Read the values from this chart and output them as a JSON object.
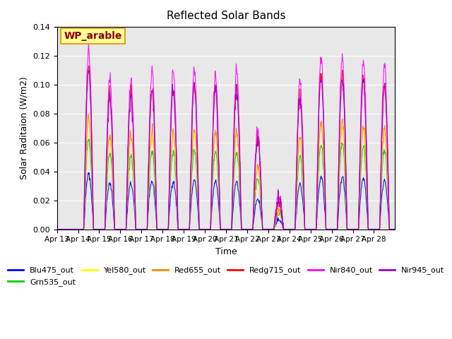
{
  "title": "Reflected Solar Bands",
  "xlabel": "Time",
  "ylabel": "Solar Raditaion (W/m2)",
  "ylim": [
    0,
    0.14
  ],
  "yticks": [
    0.0,
    0.02,
    0.04,
    0.06,
    0.08,
    0.1,
    0.12,
    0.14
  ],
  "xtick_labels": [
    "Apr 13",
    "Apr 14",
    "Apr 15",
    "Apr 16",
    "Apr 17",
    "Apr 18",
    "Apr 19",
    "Apr 20",
    "Apr 21",
    "Apr 22",
    "Apr 23",
    "Apr 24",
    "Apr 25",
    "Apr 26",
    "Apr 27",
    "Apr 28"
  ],
  "annotation_text": "WP_arable",
  "annotation_color": "#8B0000",
  "annotation_bg": "#FFFF99",
  "annotation_border": "#DAA520",
  "background_color": "#E8E8E8",
  "series": [
    {
      "name": "Blu475_out",
      "color": "#0000FF",
      "peak_scale": 0.038
    },
    {
      "name": "Grn535_out",
      "color": "#00CC00",
      "peak_scale": 0.062
    },
    {
      "name": "Yel580_out",
      "color": "#FFFF00",
      "peak_scale": 0.075
    },
    {
      "name": "Red655_out",
      "color": "#FF8800",
      "peak_scale": 0.078
    },
    {
      "name": "Redg715_out",
      "color": "#FF0000",
      "peak_scale": 0.112
    },
    {
      "name": "Nir840_out",
      "color": "#FF00FF",
      "peak_scale": 0.125
    },
    {
      "name": "Nir945_out",
      "color": "#9900CC",
      "peak_scale": 0.11
    }
  ],
  "day_factors": [
    0.0,
    1.0,
    0.83,
    0.83,
    0.87,
    0.87,
    0.88,
    0.87,
    0.87,
    0.56,
    0.18,
    0.82,
    0.95,
    0.95,
    0.93,
    0.9
  ],
  "n_days": 16,
  "n_points_per_day": 48
}
